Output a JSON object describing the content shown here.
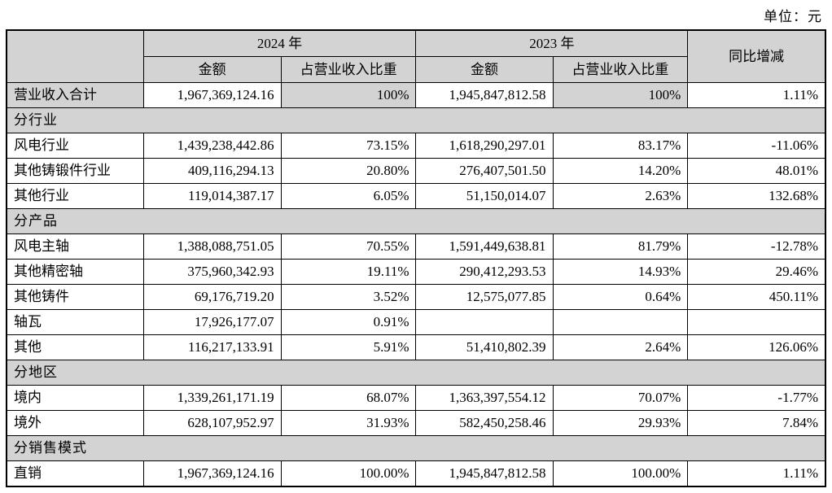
{
  "unit_label": "单位：元",
  "colors": {
    "header_bg": "#d3d3d3",
    "border": "#000000",
    "text": "#000000",
    "page_bg": "#ffffff"
  },
  "table": {
    "headers": {
      "corner": "",
      "year_2024": "2024 年",
      "year_2023": "2023 年",
      "amount": "金额",
      "ratio": "占营业收入比重",
      "yoy": "同比增减"
    },
    "rows": [
      {
        "type": "data",
        "variant": "total",
        "label": "营业收入合计",
        "amount_2024": "1,967,369,124.16",
        "ratio_2024": "100%",
        "amount_2023": "1,945,847,812.58",
        "ratio_2023": "100%",
        "yoy": "1.11%"
      },
      {
        "type": "section",
        "label": "分行业"
      },
      {
        "type": "data",
        "variant": "normal",
        "label": "风电行业",
        "amount_2024": "1,439,238,442.86",
        "ratio_2024": "73.15%",
        "amount_2023": "1,618,290,297.01",
        "ratio_2023": "83.17%",
        "yoy": "-11.06%"
      },
      {
        "type": "data",
        "variant": "normal",
        "label": "其他铸锻件行业",
        "amount_2024": "409,116,294.13",
        "ratio_2024": "20.80%",
        "amount_2023": "276,407,501.50",
        "ratio_2023": "14.20%",
        "yoy": "48.01%"
      },
      {
        "type": "data",
        "variant": "normal",
        "label": "其他行业",
        "amount_2024": "119,014,387.17",
        "ratio_2024": "6.05%",
        "amount_2023": "51,150,014.07",
        "ratio_2023": "2.63%",
        "yoy": "132.68%"
      },
      {
        "type": "section",
        "label": "分产品"
      },
      {
        "type": "data",
        "variant": "normal",
        "label": "风电主轴",
        "amount_2024": "1,388,088,751.05",
        "ratio_2024": "70.55%",
        "amount_2023": "1,591,449,638.81",
        "ratio_2023": "81.79%",
        "yoy": "-12.78%"
      },
      {
        "type": "data",
        "variant": "normal",
        "label": "其他精密轴",
        "amount_2024": "375,960,342.93",
        "ratio_2024": "19.11%",
        "amount_2023": "290,412,293.53",
        "ratio_2023": "14.93%",
        "yoy": "29.46%"
      },
      {
        "type": "data",
        "variant": "normal",
        "label": "其他铸件",
        "amount_2024": "69,176,719.20",
        "ratio_2024": "3.52%",
        "amount_2023": "12,575,077.85",
        "ratio_2023": "0.64%",
        "yoy": "450.11%"
      },
      {
        "type": "data",
        "variant": "normal",
        "label": "轴瓦",
        "amount_2024": "17,926,177.07",
        "ratio_2024": "0.91%",
        "amount_2023": "",
        "ratio_2023": "",
        "yoy": ""
      },
      {
        "type": "data",
        "variant": "normal",
        "label": "其他",
        "amount_2024": "116,217,133.91",
        "ratio_2024": "5.91%",
        "amount_2023": "51,410,802.39",
        "ratio_2023": "2.64%",
        "yoy": "126.06%"
      },
      {
        "type": "section",
        "label": "分地区"
      },
      {
        "type": "data",
        "variant": "normal",
        "label": "境内",
        "amount_2024": "1,339,261,171.19",
        "ratio_2024": "68.07%",
        "amount_2023": "1,363,397,554.12",
        "ratio_2023": "70.07%",
        "yoy": "-1.77%"
      },
      {
        "type": "data",
        "variant": "normal",
        "label": "境外",
        "amount_2024": "628,107,952.97",
        "ratio_2024": "31.93%",
        "amount_2023": "582,450,258.46",
        "ratio_2023": "29.93%",
        "yoy": "7.84%"
      },
      {
        "type": "section",
        "label": "分销售模式"
      },
      {
        "type": "data",
        "variant": "normal",
        "label": "直销",
        "amount_2024": "1,967,369,124.16",
        "ratio_2024": "100.00%",
        "amount_2023": "1,945,847,812.58",
        "ratio_2023": "100.00%",
        "yoy": "1.11%"
      }
    ]
  }
}
